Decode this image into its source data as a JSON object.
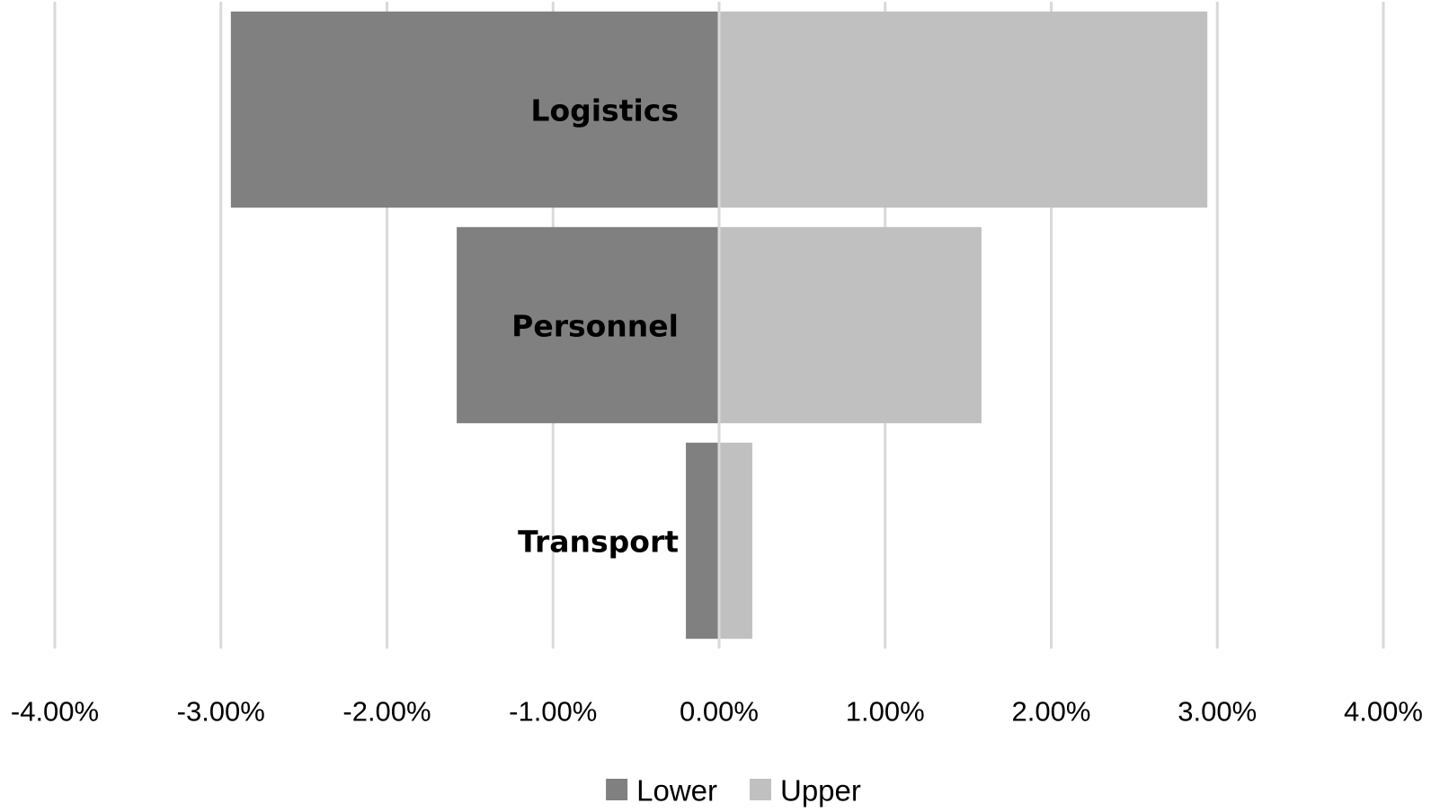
{
  "chart_data": {
    "type": "bar",
    "orientation": "horizontal",
    "stacking": "diverging",
    "title": "",
    "xlabel": "",
    "ylabel": "",
    "categories": [
      "Logistics",
      "Personnel",
      "Transport"
    ],
    "series": [
      {
        "name": "Lower",
        "color": "#808080",
        "values": [
          -0.0294,
          -0.0158,
          -0.002
        ]
      },
      {
        "name": "Upper",
        "color": "#c0c0c0",
        "values": [
          0.0294,
          0.0158,
          0.002
        ]
      }
    ],
    "xlim": [
      -0.04,
      0.04
    ],
    "x_ticks": [
      -0.04,
      -0.03,
      -0.02,
      -0.01,
      0.0,
      0.01,
      0.02,
      0.03,
      0.04
    ],
    "x_tick_labels": [
      "-4.00%",
      "-3.00%",
      "-2.00%",
      "-1.00%",
      "0.00%",
      "1.00%",
      "2.00%",
      "3.00%",
      "4.00%"
    ],
    "grid": "vertical",
    "grid_color": "#d9d9d9",
    "legend": {
      "position": "bottom",
      "entries": [
        "Lower",
        "Upper"
      ]
    },
    "category_labels_position": "left-of-zero-inside-bars",
    "category_label_style": "bold"
  }
}
